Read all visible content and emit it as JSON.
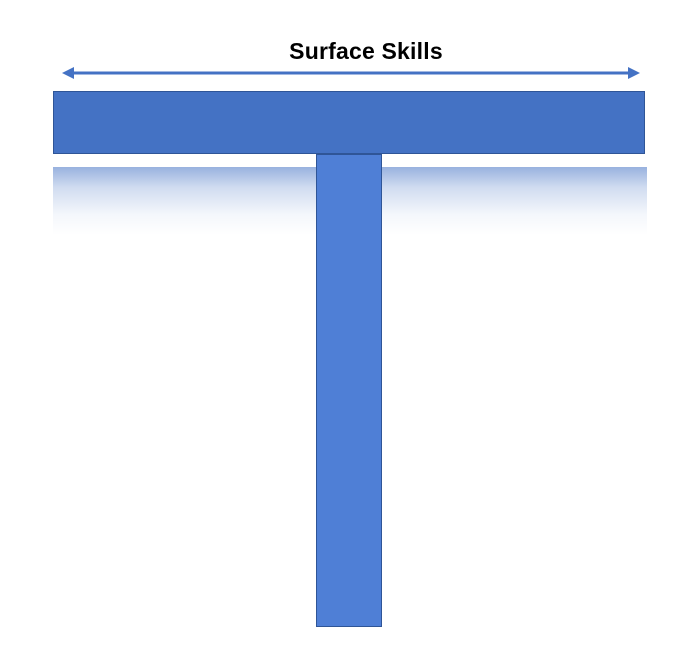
{
  "diagram": {
    "title": "Surface Skills",
    "colors": {
      "bar": "#4472c4",
      "stem": "#4f7fd6",
      "outline": "#2f5597",
      "arrow": "#4472c4"
    }
  }
}
